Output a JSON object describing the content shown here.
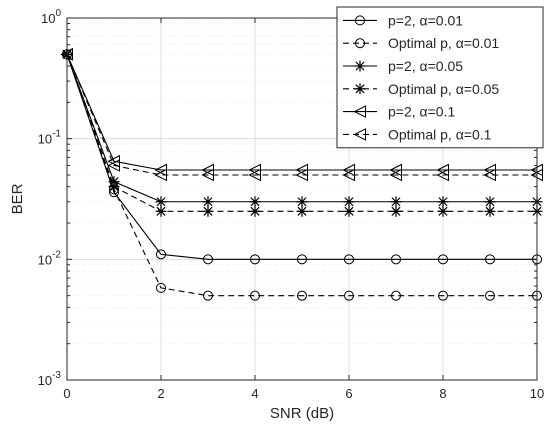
{
  "chart_data": {
    "type": "line",
    "xlabel": "SNR (dB)",
    "ylabel": "BER",
    "xlim": [
      0,
      10
    ],
    "ylim": [
      0.001,
      1
    ],
    "yscale": "log",
    "grid": true,
    "legend_position": "top-right",
    "x_ticks": [
      0,
      2,
      4,
      6,
      8,
      10
    ],
    "y_ticks": [
      {
        "value": 1,
        "base": "10",
        "exp": "0"
      },
      {
        "value": 0.1,
        "base": "10",
        "exp": "-1"
      },
      {
        "value": 0.01,
        "base": "10",
        "exp": "-2"
      },
      {
        "value": 0.001,
        "base": "10",
        "exp": "-3"
      }
    ],
    "x": [
      0,
      1,
      2,
      3,
      4,
      5,
      6,
      7,
      8,
      9,
      10
    ],
    "series": [
      {
        "name": "p=2, α=0.01",
        "marker": "circle",
        "dash": "solid",
        "values": [
          0.5,
          0.036,
          0.011,
          0.01,
          0.01,
          0.01,
          0.01,
          0.01,
          0.01,
          0.01,
          0.01
        ]
      },
      {
        "name": "Optimal p, α=0.01",
        "marker": "circle",
        "dash": "dashed",
        "values": [
          0.5,
          0.038,
          0.0058,
          0.005,
          0.005,
          0.005,
          0.005,
          0.005,
          0.005,
          0.005,
          0.005
        ]
      },
      {
        "name": "p=2, α=0.05",
        "marker": "star",
        "dash": "solid",
        "values": [
          0.5,
          0.044,
          0.03,
          0.03,
          0.03,
          0.03,
          0.03,
          0.03,
          0.03,
          0.03,
          0.03
        ]
      },
      {
        "name": "Optimal p, α=0.05",
        "marker": "star",
        "dash": "dashed",
        "values": [
          0.5,
          0.04,
          0.025,
          0.025,
          0.025,
          0.025,
          0.025,
          0.025,
          0.025,
          0.025,
          0.025
        ]
      },
      {
        "name": "p=2, α=0.1",
        "marker": "triangle-left",
        "dash": "solid",
        "values": [
          0.5,
          0.065,
          0.055,
          0.055,
          0.055,
          0.055,
          0.055,
          0.055,
          0.055,
          0.055,
          0.055
        ]
      },
      {
        "name": "Optimal p, α=0.1",
        "marker": "triangle-left",
        "dash": "dashed",
        "values": [
          0.5,
          0.06,
          0.05,
          0.05,
          0.05,
          0.05,
          0.05,
          0.05,
          0.05,
          0.05,
          0.05
        ]
      }
    ]
  }
}
